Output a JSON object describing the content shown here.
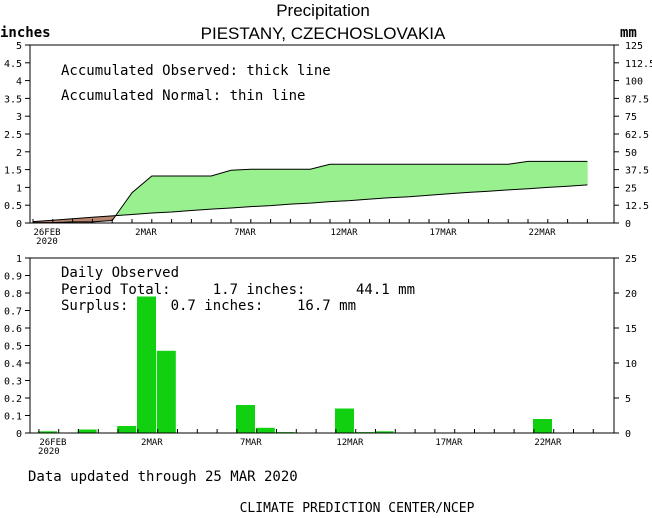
{
  "header": {
    "title": "Precipitation",
    "subtitle": "PIESTANY, CZECHOSLOVAKIA",
    "left_unit": "inches",
    "right_unit": "mm"
  },
  "top_panel": {
    "legend_line1": "Accumulated Observed: thick line",
    "legend_line2": "Accumulated Normal: thin line"
  },
  "bottom_panel": {
    "label_daily": "Daily Observed",
    "label_total": "Period Total:     1.7 inches:      44.1 mm",
    "label_surplus": "Surplus:     0.7 inches:    16.7 mm"
  },
  "footer": {
    "updated": "Data updated through 25 MAR 2020",
    "credit": "CLIMATE PREDICTION CENTER/NCEP"
  },
  "colors": {
    "surplus_fill": "#98f08f",
    "deficit_fill": "#b8866e",
    "bar_fill": "#10d010"
  },
  "chart_data": [
    {
      "type": "area",
      "x_dates": [
        "26FEB",
        "27FEB",
        "28FEB",
        "29FEB",
        "1MAR",
        "2MAR",
        "3MAR",
        "4MAR",
        "5MAR",
        "6MAR",
        "7MAR",
        "8MAR",
        "9MAR",
        "10MAR",
        "11MAR",
        "12MAR",
        "13MAR",
        "14MAR",
        "15MAR",
        "16MAR",
        "17MAR",
        "18MAR",
        "19MAR",
        "20MAR",
        "21MAR",
        "22MAR",
        "23MAR",
        "24MAR",
        "25MAR"
      ],
      "x_tick_labels": [
        "26FEB",
        "2MAR",
        "7MAR",
        "12MAR",
        "17MAR",
        "22MAR"
      ],
      "x_tick_sublabel": "2020",
      "y_left_ticks": [
        "0",
        "0.5",
        "1",
        "1.5",
        "2",
        "2.5",
        "3",
        "3.5",
        "4",
        "4.5",
        "5"
      ],
      "y_right_ticks": [
        "0",
        "12.5",
        "25",
        "37.5",
        "50",
        "62.5",
        "75",
        "87.5",
        "100",
        "112.5",
        "125"
      ],
      "ylim": [
        0,
        5
      ],
      "series": [
        {
          "name": "Accumulated Observed",
          "values": [
            0.01,
            0.01,
            0.03,
            0.03,
            0.07,
            0.85,
            1.32,
            1.32,
            1.32,
            1.32,
            1.48,
            1.51,
            1.51,
            1.51,
            1.51,
            1.65,
            1.65,
            1.65,
            1.65,
            1.65,
            1.65,
            1.65,
            1.65,
            1.65,
            1.65,
            1.73,
            1.73,
            1.73,
            1.73
          ]
        },
        {
          "name": "Accumulated Normal",
          "values": [
            0.04,
            0.08,
            0.12,
            0.16,
            0.2,
            0.24,
            0.28,
            0.31,
            0.35,
            0.39,
            0.42,
            0.46,
            0.49,
            0.53,
            0.56,
            0.6,
            0.63,
            0.67,
            0.71,
            0.74,
            0.78,
            0.82,
            0.86,
            0.89,
            0.93,
            0.96,
            1.0,
            1.03,
            1.07
          ]
        }
      ]
    },
    {
      "type": "bar",
      "x_dates": [
        "26FEB",
        "27FEB",
        "28FEB",
        "29FEB",
        "1MAR",
        "2MAR",
        "3MAR",
        "4MAR",
        "5MAR",
        "6MAR",
        "7MAR",
        "8MAR",
        "9MAR",
        "10MAR",
        "11MAR",
        "12MAR",
        "13MAR",
        "14MAR",
        "15MAR",
        "16MAR",
        "17MAR",
        "18MAR",
        "19MAR",
        "20MAR",
        "21MAR",
        "22MAR",
        "23MAR",
        "24MAR",
        "25MAR"
      ],
      "x_tick_labels": [
        "26FEB",
        "2MAR",
        "7MAR",
        "12MAR",
        "17MAR",
        "22MAR"
      ],
      "x_tick_sublabel": "2020",
      "y_left_ticks": [
        "0",
        "0.1",
        "0.2",
        "0.3",
        "0.4",
        "0.5",
        "0.6",
        "0.7",
        "0.8",
        "0.9",
        "1"
      ],
      "y_right_ticks": [
        "0",
        "5",
        "10",
        "15",
        "20",
        "25"
      ],
      "ylim": [
        0,
        1
      ],
      "values": [
        0.01,
        0,
        0.02,
        0,
        0.04,
        0.78,
        0.47,
        0,
        0,
        0,
        0.16,
        0.03,
        0.005,
        0,
        0,
        0.14,
        0.005,
        0.01,
        0,
        0,
        0,
        0,
        0,
        0,
        0,
        0.08,
        0,
        0,
        0
      ]
    }
  ]
}
